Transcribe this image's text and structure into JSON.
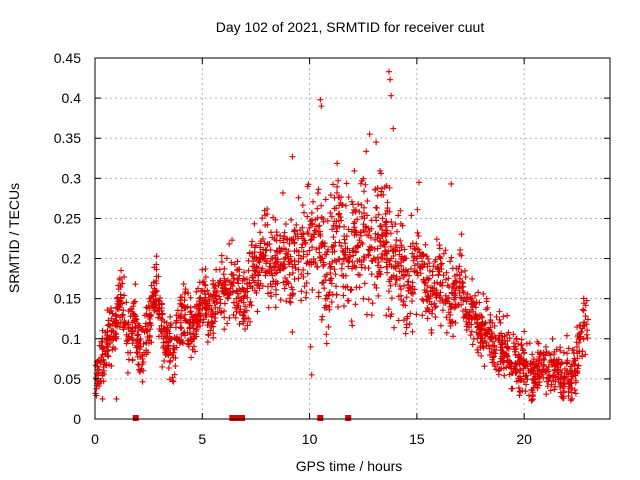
{
  "chart_data": {
    "type": "scatter",
    "title": "Day 102 of 2021, SRMTID for receiver cuut",
    "xlabel": "GPS time / hours",
    "ylabel": "SRMTID / TECUs",
    "xlim": [
      0,
      24
    ],
    "ylim": [
      0,
      0.45
    ],
    "x_ticks": [
      "0",
      "5",
      "10",
      "15",
      "20"
    ],
    "y_ticks": [
      "0",
      "0.05",
      "0.1",
      "0.15",
      "0.2",
      "0.25",
      "0.3",
      "0.35",
      "0.4",
      "0.45"
    ],
    "grid": true,
    "marker": "+",
    "color": "#dd0000",
    "series": [
      {
        "x": [
          0.05,
          0.15,
          0.25,
          0.35,
          0.45,
          0.55,
          0.7,
          0.85,
          1.0,
          1.1,
          1.2,
          1.3,
          1.4,
          1.55,
          1.7,
          1.85,
          2.0,
          2.2,
          2.4,
          2.55,
          2.7,
          2.85,
          3.0,
          3.2,
          3.4,
          3.6,
          3.8,
          4.0,
          4.2,
          4.4,
          4.6,
          4.8,
          5.0,
          5.2,
          5.4,
          5.6,
          5.8,
          6.0,
          6.2,
          6.4,
          6.6,
          6.8,
          7.0,
          7.2,
          7.4,
          7.6,
          7.8,
          8.0,
          8.2,
          8.4,
          8.6,
          8.8,
          9.0,
          9.2,
          9.4,
          9.6,
          9.8,
          10.0,
          10.2,
          10.4,
          10.6,
          10.8,
          11.0,
          11.2,
          11.4,
          11.6,
          11.8,
          12.0,
          12.2,
          12.4,
          12.6,
          12.8,
          13.0,
          13.2,
          13.4,
          13.6,
          13.8,
          14.0,
          14.2,
          14.4,
          14.6,
          14.8,
          15.0,
          15.2,
          15.4,
          15.6,
          15.8,
          16.0,
          16.2,
          16.4,
          16.6,
          16.8,
          17.0,
          17.2,
          17.4,
          17.6,
          17.8,
          18.0,
          18.2,
          18.4,
          18.6,
          18.8,
          19.0,
          19.2,
          19.4,
          19.6,
          19.8,
          20.0,
          20.2,
          20.4,
          20.6,
          20.8,
          21.0,
          21.2,
          21.4,
          21.6,
          21.8,
          22.0,
          22.2,
          22.4,
          22.6,
          22.8
        ],
        "y": [
          0.05,
          0.06,
          0.07,
          0.08,
          0.07,
          0.09,
          0.1,
          0.11,
          0.12,
          0.14,
          0.15,
          0.13,
          0.12,
          0.1,
          0.11,
          0.13,
          0.09,
          0.08,
          0.11,
          0.12,
          0.14,
          0.16,
          0.13,
          0.1,
          0.09,
          0.08,
          0.1,
          0.12,
          0.13,
          0.12,
          0.1,
          0.13,
          0.16,
          0.14,
          0.13,
          0.15,
          0.17,
          0.16,
          0.15,
          0.18,
          0.16,
          0.15,
          0.14,
          0.17,
          0.19,
          0.18,
          0.2,
          0.21,
          0.2,
          0.19,
          0.21,
          0.22,
          0.2,
          0.19,
          0.21,
          0.2,
          0.22,
          0.21,
          0.23,
          0.24,
          0.2,
          0.18,
          0.19,
          0.22,
          0.24,
          0.2,
          0.19,
          0.21,
          0.23,
          0.22,
          0.24,
          0.21,
          0.2,
          0.23,
          0.25,
          0.22,
          0.2,
          0.19,
          0.21,
          0.18,
          0.16,
          0.17,
          0.2,
          0.19,
          0.17,
          0.15,
          0.16,
          0.18,
          0.17,
          0.15,
          0.14,
          0.16,
          0.17,
          0.15,
          0.13,
          0.14,
          0.12,
          0.11,
          0.12,
          0.1,
          0.09,
          0.1,
          0.08,
          0.09,
          0.07,
          0.08,
          0.06,
          0.07,
          0.06,
          0.05,
          0.06,
          0.07,
          0.06,
          0.05,
          0.06,
          0.07,
          0.05,
          0.06,
          0.05,
          0.06,
          0.1,
          0.12
        ]
      }
    ],
    "highlights": [
      {
        "x": 9.2,
        "y": 0.327
      },
      {
        "x": 10.5,
        "y": 0.398
      },
      {
        "x": 10.55,
        "y": 0.39
      },
      {
        "x": 12.8,
        "y": 0.355
      },
      {
        "x": 13.1,
        "y": 0.345
      },
      {
        "x": 13.7,
        "y": 0.433
      },
      {
        "x": 13.75,
        "y": 0.423
      },
      {
        "x": 13.8,
        "y": 0.403
      },
      {
        "x": 13.9,
        "y": 0.362
      },
      {
        "x": 15.1,
        "y": 0.295
      },
      {
        "x": 16.6,
        "y": 0.293
      },
      {
        "x": 10.05,
        "y": 0.09
      },
      {
        "x": 10.1,
        "y": 0.055
      },
      {
        "x": 1.0,
        "y": 0.025
      },
      {
        "x": 0.35,
        "y": 0.025
      }
    ],
    "zero_markers_x": [
      1.9,
      6.4,
      6.6,
      6.85,
      10.5,
      11.8
    ]
  }
}
